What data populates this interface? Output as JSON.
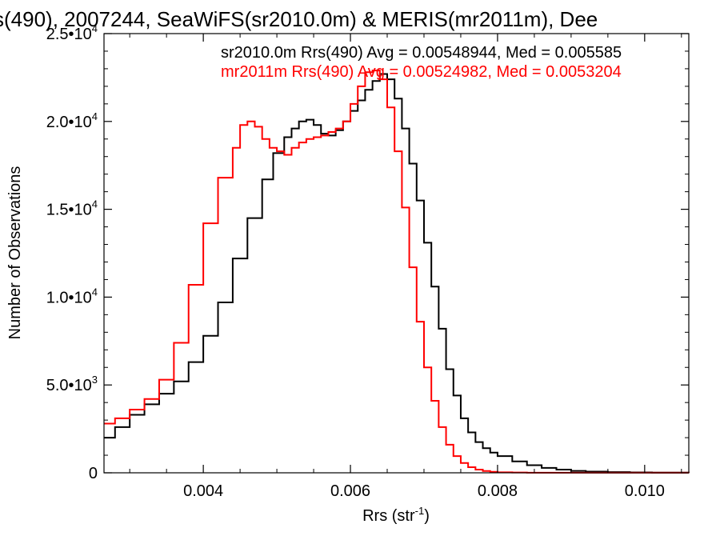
{
  "chart_data": {
    "type": "line",
    "title": "s(490), 2007244, SeaWiFS(sr2010.0m) & MERIS(mr2011m), Dee",
    "xlabel": "Rrs (str",
    "xlabel_sup": "-1",
    "xlabel_close": ")",
    "ylabel": "Number of Observations",
    "xlim": [
      0.00265,
      0.0106
    ],
    "ylim": [
      0,
      25000
    ],
    "x_ticks": [
      {
        "value": 0.004,
        "label": "0.004"
      },
      {
        "value": 0.006,
        "label": "0.006"
      },
      {
        "value": 0.008,
        "label": "0.008"
      },
      {
        "value": 0.01,
        "label": "0.010"
      }
    ],
    "y_ticks": [
      {
        "value": 0,
        "label": "0",
        "sup": ""
      },
      {
        "value": 5000,
        "label": "5.0•10",
        "sup": "3"
      },
      {
        "value": 10000,
        "label": "1.0•10",
        "sup": "4"
      },
      {
        "value": 15000,
        "label": "1.5•10",
        "sup": "4"
      },
      {
        "value": 20000,
        "label": "2.0•10",
        "sup": "4"
      },
      {
        "value": 25000,
        "label": "2.5•10",
        "sup": "4"
      }
    ],
    "annotations": [
      {
        "text": "sr2010.0m Rrs(490) Avg = 0.00548944, Med = 0.005585",
        "color": "#000000"
      },
      {
        "text": "mr2011m Rrs(490) Avg = 0.00524982, Med = 0.0053204",
        "color": "#ff0000"
      }
    ],
    "series": [
      {
        "color": "#000000",
        "x": [
          0.00265,
          0.0028,
          0.003,
          0.0032,
          0.0034,
          0.0036,
          0.0038,
          0.004,
          0.0042,
          0.0044,
          0.0046,
          0.0048,
          0.00495,
          0.0051,
          0.0052,
          0.0053,
          0.0054,
          0.0055,
          0.0056,
          0.0057,
          0.0058,
          0.0059,
          0.006,
          0.0061,
          0.0062,
          0.0063,
          0.0064,
          0.0065,
          0.0066,
          0.0067,
          0.0068,
          0.0069,
          0.007,
          0.0071,
          0.0072,
          0.0073,
          0.0074,
          0.0075,
          0.0076,
          0.0077,
          0.0078,
          0.0079,
          0.008,
          0.0082,
          0.0084,
          0.0086,
          0.0088,
          0.009,
          0.0092,
          0.0095,
          0.0098,
          0.0101,
          0.0106
        ],
        "y": [
          2000,
          2600,
          3300,
          3900,
          4500,
          5200,
          6300,
          7800,
          9700,
          12200,
          14500,
          16700,
          18200,
          19100,
          19600,
          20000,
          20100,
          19800,
          19300,
          19200,
          19500,
          20000,
          20600,
          21200,
          21800,
          22300,
          22700,
          22400,
          21300,
          19600,
          17600,
          15500,
          13100,
          10600,
          8200,
          5900,
          4400,
          3100,
          2300,
          1750,
          1400,
          1150,
          950,
          650,
          430,
          280,
          180,
          110,
          70,
          40,
          20,
          10,
          0
        ]
      },
      {
        "color": "#ff0000",
        "x": [
          0.00265,
          0.0028,
          0.003,
          0.0032,
          0.0034,
          0.0036,
          0.0038,
          0.004,
          0.0042,
          0.0044,
          0.0045,
          0.0046,
          0.0047,
          0.0048,
          0.0049,
          0.005,
          0.0051,
          0.0052,
          0.0053,
          0.0054,
          0.0055,
          0.0056,
          0.0057,
          0.0058,
          0.0059,
          0.006,
          0.0061,
          0.0062,
          0.0063,
          0.0064,
          0.0065,
          0.0066,
          0.0067,
          0.0068,
          0.0069,
          0.007,
          0.0071,
          0.0072,
          0.0073,
          0.0074,
          0.0075,
          0.0076,
          0.0077,
          0.0078,
          0.0079,
          0.008,
          0.0082,
          0.0084,
          0.0086,
          0.0106
        ],
        "y": [
          2800,
          3100,
          3600,
          4200,
          5300,
          7400,
          10700,
          14200,
          16800,
          18500,
          19800,
          20000,
          19700,
          19000,
          18500,
          18300,
          18100,
          18500,
          18800,
          19000,
          19100,
          19200,
          19400,
          19600,
          20000,
          21000,
          22000,
          22800,
          22900,
          22400,
          20800,
          18300,
          15100,
          11700,
          8600,
          6000,
          4100,
          2600,
          1600,
          950,
          560,
          320,
          180,
          100,
          55,
          30,
          15,
          8,
          4,
          0
        ]
      }
    ]
  }
}
